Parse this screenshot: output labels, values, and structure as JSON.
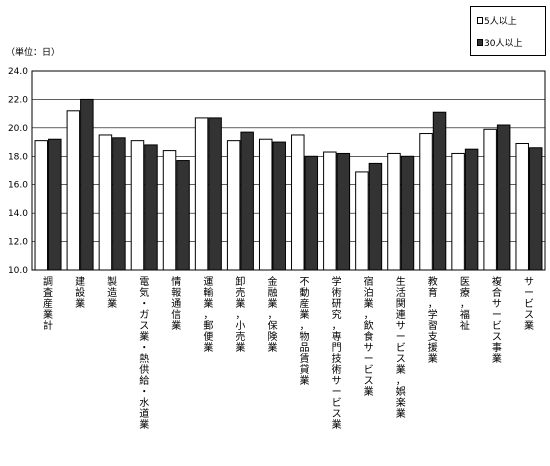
{
  "chart_data": {
    "type": "bar",
    "unit_label": "（単位：日）",
    "ylim": [
      10.0,
      24.0
    ],
    "yticks": [
      "10.0",
      "12.0",
      "14.0",
      "16.0",
      "18.0",
      "20.0",
      "22.0",
      "24.0"
    ],
    "grid": true,
    "legend_position": "top-right",
    "categories": [
      "調査産業計",
      "建設業",
      "製造業",
      "電気・ガス業・熱供給・水道業",
      "情報通信業",
      "運輸業，郵便業",
      "卸売業，小売業",
      "金融業，保険業",
      "不動産業，物品賃貸業",
      "学術研究，専門技術サービス業",
      "宿泊業，飲食サービス業",
      "生活関連サービス業，娯楽業",
      "教育，学習支援業",
      "医療，福祉",
      "複合サービス事業",
      "サービス業"
    ],
    "series": [
      {
        "name": "5人以上",
        "color": "#ffffff",
        "values": [
          19.1,
          21.2,
          19.5,
          19.1,
          18.4,
          20.7,
          19.1,
          19.2,
          19.5,
          18.3,
          16.9,
          18.2,
          19.6,
          18.2,
          19.9,
          18.9
        ]
      },
      {
        "name": "30人以上",
        "color": "#333333",
        "values": [
          19.2,
          22.0,
          19.3,
          18.8,
          17.7,
          20.7,
          19.7,
          19.0,
          18.0,
          18.2,
          17.5,
          18.0,
          21.1,
          18.5,
          20.2,
          18.6
        ]
      }
    ]
  }
}
